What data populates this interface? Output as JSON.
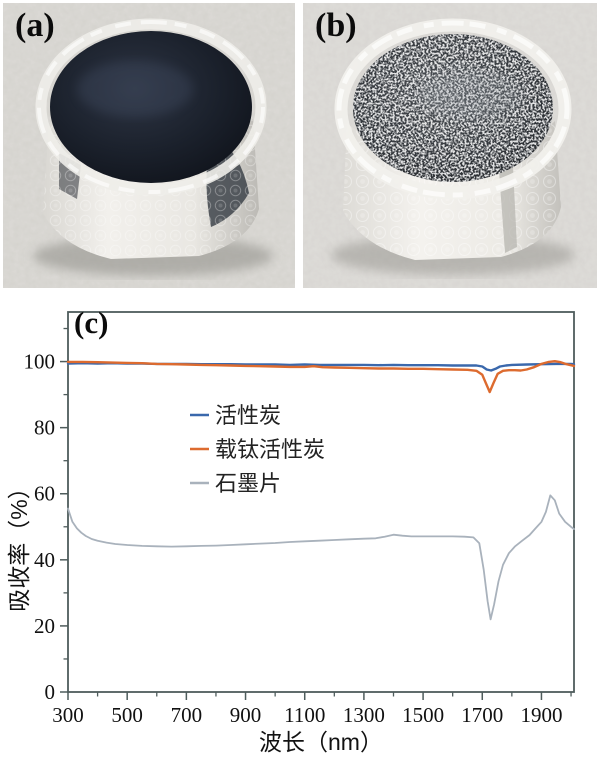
{
  "figure": {
    "panel_a_label": "(a)",
    "panel_b_label": "(b)",
    "panel_c_label": "(c)"
  },
  "chart_data": {
    "type": "line",
    "title": "",
    "xlabel": "波长（nm）",
    "ylabel": "吸收率（%）",
    "xlim": [
      300,
      2010
    ],
    "ylim": [
      0,
      115
    ],
    "x_major_ticks": [
      300,
      500,
      700,
      900,
      1100,
      1300,
      1500,
      1700,
      1900
    ],
    "x_minor_ticks": [
      400,
      600,
      800,
      1000,
      1200,
      1400,
      1600,
      1800,
      2000
    ],
    "y_major_ticks": [
      0,
      20,
      40,
      60,
      80,
      100
    ],
    "y_minor_ticks": [
      10,
      30,
      50,
      70,
      90,
      110
    ],
    "grid": false,
    "legend_position": "inside-left-center",
    "axis_color": "#4e5c5c",
    "text_color": "#111111",
    "series": [
      {
        "name": "活性炭",
        "color": "#3a68ac",
        "width": 2.4,
        "x": [
          300,
          350,
          400,
          450,
          500,
          550,
          600,
          650,
          700,
          750,
          800,
          850,
          900,
          950,
          1000,
          1050,
          1100,
          1150,
          1200,
          1250,
          1300,
          1350,
          1400,
          1450,
          1500,
          1550,
          1600,
          1650,
          1680,
          1700,
          1715,
          1730,
          1745,
          1760,
          1780,
          1800,
          1850,
          1900,
          1950,
          2000,
          2010
        ],
        "y": [
          99.4,
          99.5,
          99.4,
          99.5,
          99.4,
          99.4,
          99.3,
          99.3,
          99.3,
          99.2,
          99.2,
          99.2,
          99.1,
          99.1,
          99.1,
          99.0,
          99.1,
          99.0,
          99.0,
          99.0,
          99.0,
          98.9,
          99.0,
          98.9,
          98.9,
          98.9,
          98.8,
          98.8,
          98.8,
          98.5,
          97.6,
          97.3,
          97.8,
          98.5,
          98.8,
          99.0,
          99.1,
          99.2,
          99.3,
          99.3,
          99.2
        ]
      },
      {
        "name": "载钛活性炭",
        "color": "#dd6b2f",
        "width": 2.4,
        "x": [
          300,
          350,
          400,
          450,
          500,
          550,
          600,
          650,
          700,
          750,
          800,
          850,
          900,
          950,
          1000,
          1050,
          1100,
          1130,
          1160,
          1200,
          1250,
          1300,
          1350,
          1400,
          1450,
          1500,
          1550,
          1600,
          1650,
          1680,
          1700,
          1712,
          1725,
          1738,
          1752,
          1770,
          1790,
          1810,
          1830,
          1850,
          1875,
          1900,
          1925,
          1945,
          1965,
          1985,
          2010
        ],
        "y": [
          99.9,
          99.9,
          99.8,
          99.7,
          99.6,
          99.5,
          99.3,
          99.2,
          99.1,
          99.0,
          98.9,
          98.8,
          98.7,
          98.6,
          98.5,
          98.4,
          98.4,
          98.6,
          98.3,
          98.2,
          98.1,
          98.0,
          97.9,
          97.9,
          97.8,
          97.8,
          97.7,
          97.6,
          97.5,
          97.2,
          96.0,
          93.5,
          90.8,
          93.5,
          96.3,
          97.2,
          97.4,
          97.4,
          97.3,
          97.6,
          98.3,
          99.3,
          99.9,
          100.1,
          99.8,
          99.2,
          98.7
        ]
      },
      {
        "name": "石墨片",
        "color": "#a9b2bc",
        "width": 1.8,
        "x": [
          300,
          315,
          330,
          345,
          360,
          380,
          400,
          430,
          460,
          500,
          550,
          600,
          650,
          700,
          750,
          800,
          850,
          900,
          950,
          1000,
          1050,
          1100,
          1150,
          1200,
          1250,
          1300,
          1340,
          1370,
          1400,
          1430,
          1460,
          1500,
          1550,
          1600,
          1640,
          1670,
          1690,
          1705,
          1718,
          1728,
          1740,
          1755,
          1770,
          1790,
          1810,
          1835,
          1860,
          1880,
          1900,
          1915,
          1930,
          1945,
          1960,
          1980,
          2000,
          2010
        ],
        "y": [
          55.5,
          51.5,
          49.5,
          48.2,
          47.2,
          46.3,
          45.8,
          45.2,
          44.8,
          44.5,
          44.2,
          44.1,
          44.0,
          44.1,
          44.2,
          44.3,
          44.5,
          44.7,
          44.9,
          45.1,
          45.4,
          45.6,
          45.8,
          46.0,
          46.2,
          46.4,
          46.5,
          47.0,
          47.6,
          47.3,
          47.1,
          47.1,
          47.1,
          47.1,
          47.0,
          46.8,
          45.0,
          37.0,
          27.5,
          22.0,
          26.5,
          33.5,
          38.5,
          42.0,
          44.0,
          45.8,
          47.5,
          49.5,
          51.5,
          54.5,
          59.5,
          58.0,
          54.0,
          51.5,
          50.0,
          49.3
        ]
      }
    ]
  }
}
